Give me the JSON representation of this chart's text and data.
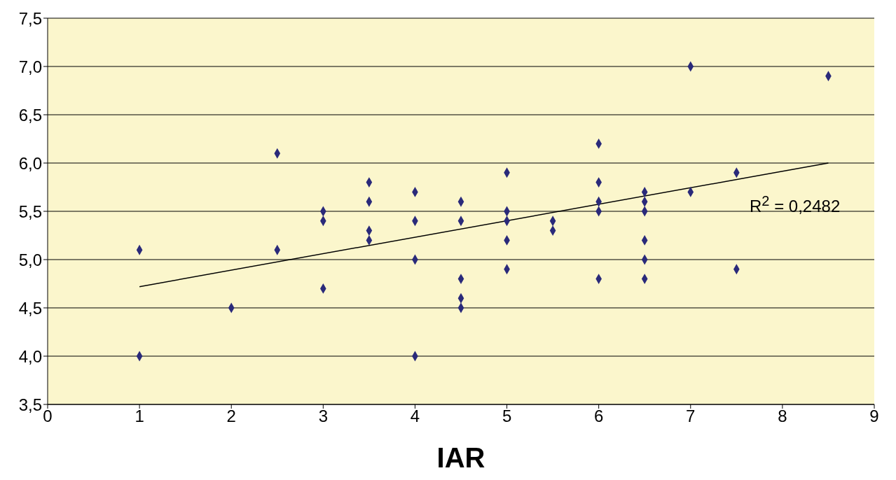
{
  "chart_data": {
    "type": "scatter",
    "xlabel": "IAR",
    "x": [
      1,
      1,
      2,
      2.5,
      2.5,
      3,
      3,
      3,
      3.5,
      3.5,
      3.5,
      3.5,
      4,
      4,
      4,
      4,
      4.5,
      4.5,
      4.5,
      4.5,
      4.5,
      5,
      5,
      5,
      5,
      5,
      5.5,
      5.5,
      6,
      6,
      6,
      6,
      6,
      6.5,
      6.5,
      6.5,
      6.5,
      6.5,
      6.5,
      7,
      7,
      7.5,
      7.5,
      8.5
    ],
    "series": [
      {
        "color": "#2a2a7a",
        "marker": "diamond",
        "values": [
          5.1,
          4.0,
          4.5,
          6.1,
          5.1,
          5.5,
          5.4,
          4.7,
          5.8,
          5.6,
          5.3,
          5.2,
          5.7,
          5.4,
          5.0,
          4.0,
          5.6,
          5.4,
          4.8,
          4.6,
          4.5,
          5.9,
          5.5,
          5.4,
          5.2,
          4.9,
          5.4,
          5.3,
          6.2,
          5.8,
          5.6,
          5.5,
          4.8,
          5.7,
          5.6,
          5.5,
          5.2,
          5.0,
          4.8,
          7.0,
          5.7,
          5.9,
          4.9,
          6.9
        ]
      },
      {
        "type": "line",
        "color": "#000000",
        "marker": "none",
        "x": [
          1,
          8.5
        ],
        "values": [
          4.72,
          6.0
        ]
      }
    ],
    "annotations": [
      "R$^{2}$ = 0,2482"
    ],
    "xlim": [
      0,
      9
    ],
    "xticks": [
      0,
      1,
      2,
      3,
      4,
      5,
      6,
      7,
      8,
      9
    ],
    "ylim": [
      3.5,
      7.5
    ],
    "yticks": [
      {
        "value": 3.5,
        "label": "3,5"
      },
      {
        "value": 4,
        "label": "4,0"
      },
      {
        "value": 4.5,
        "label": "4,5"
      },
      {
        "value": 5,
        "label": "5,0"
      },
      {
        "value": 5.5,
        "label": "5,5"
      },
      {
        "value": 6,
        "label": "6,0"
      },
      {
        "value": 6.5,
        "label": "6,5"
      },
      {
        "value": 7,
        "label": "7,0"
      },
      {
        "value": 7.5,
        "label": "7,5"
      }
    ],
    "grid": "y",
    "legend": false
  }
}
